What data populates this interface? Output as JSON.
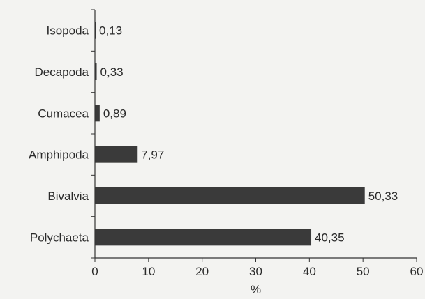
{
  "chart_data": {
    "type": "bar",
    "orientation": "horizontal",
    "categories": [
      "Isopoda",
      "Decapoda",
      "Cumacea",
      "Amphipoda",
      "Bivalvia",
      "Polychaeta"
    ],
    "values": [
      0.13,
      0.33,
      0.89,
      7.97,
      50.33,
      40.35
    ],
    "value_labels": [
      "0,13",
      "0,33",
      "0,89",
      "7,97",
      "50,33",
      "40,35"
    ],
    "xlabel": "%",
    "ylabel": "",
    "title": "",
    "xlim": [
      0,
      60
    ],
    "xticks": [
      0,
      10,
      20,
      30,
      40,
      50,
      60
    ],
    "grid": false,
    "legend": "none",
    "bar_color": "#3a3a3a"
  }
}
